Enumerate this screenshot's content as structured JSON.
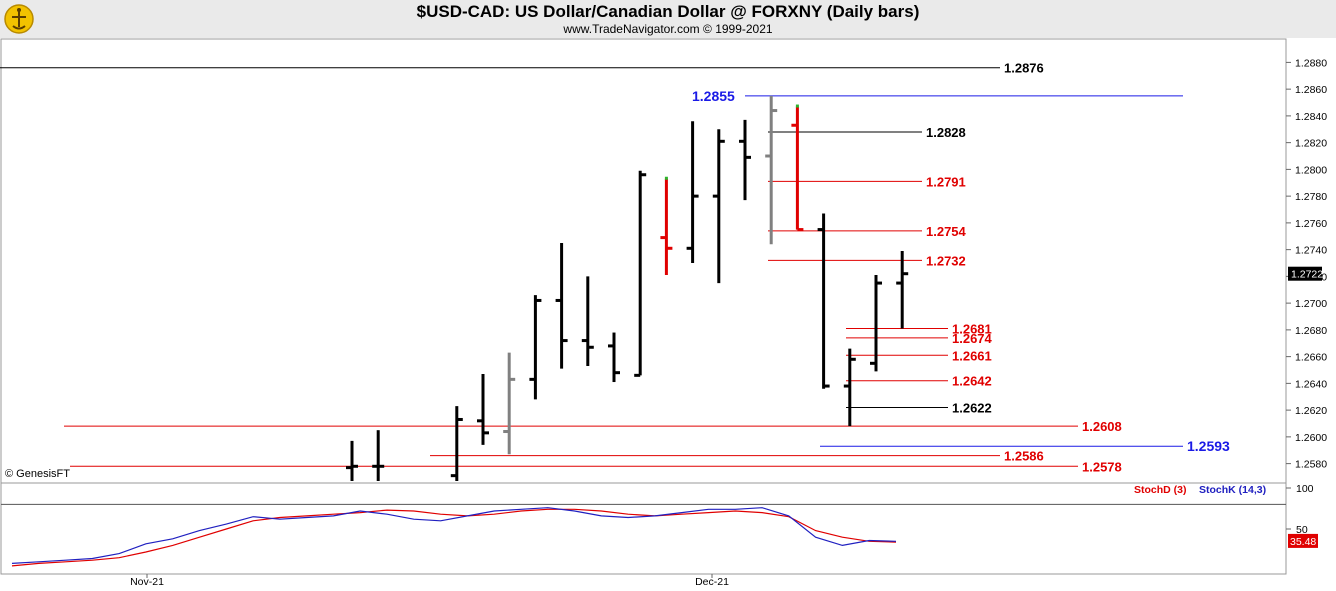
{
  "header": {
    "title": "$USD-CAD:  US Dollar/Canadian Dollar @ FORXNY  (Daily bars)",
    "subtitle": "www.TradeNavigator.com © 1999-2021",
    "watermark": "© GenesisFT"
  },
  "colors": {
    "up_bar": "#000000",
    "inside_bar": "#808080",
    "key_bar": "#e00000",
    "red_level": "#e00000",
    "black_level": "#000000",
    "blue_level": "#1a1ae6",
    "stoch_d": "#e00000",
    "stoch_k": "#2020c0"
  },
  "chart_data": [
    {
      "type": "ohlc",
      "title": "$USD-CAD",
      "yrange": [
        1.2567,
        1.2896
      ],
      "y_ticks": [
        "1.2880",
        "1.2860",
        "1.2840",
        "1.2820",
        "1.2800",
        "1.2780",
        "1.2760",
        "1.2740",
        "1.2720",
        "1.2700",
        "1.2680",
        "1.2660",
        "1.2640",
        "1.2620",
        "1.2600",
        "1.2580"
      ],
      "last_price": "1.2722",
      "x_labels": [
        "Nov-21",
        "Dec-21"
      ],
      "bars": [
        {
          "o": 1.2577,
          "h": 1.2597,
          "l": 1.2567,
          "c": 1.2578,
          "color": "black"
        },
        {
          "o": 1.2578,
          "h": 1.2605,
          "l": 1.2567,
          "c": 1.2578,
          "color": "black"
        },
        {
          "o": 1.2571,
          "h": 1.2623,
          "l": 1.2567,
          "c": 1.2613,
          "color": "black"
        },
        {
          "o": 1.2612,
          "h": 1.2647,
          "l": 1.2594,
          "c": 1.2603,
          "color": "black"
        },
        {
          "o": 1.2604,
          "h": 1.2663,
          "l": 1.2587,
          "c": 1.2643,
          "color": "gray"
        },
        {
          "o": 1.2643,
          "h": 1.2706,
          "l": 1.2628,
          "c": 1.2702,
          "color": "black"
        },
        {
          "o": 1.2702,
          "h": 1.2745,
          "l": 1.2651,
          "c": 1.2672,
          "color": "black"
        },
        {
          "o": 1.2672,
          "h": 1.272,
          "l": 1.2653,
          "c": 1.2667,
          "color": "black"
        },
        {
          "o": 1.2668,
          "h": 1.2678,
          "l": 1.2641,
          "c": 1.2648,
          "color": "black"
        },
        {
          "o": 1.2646,
          "h": 1.2799,
          "l": 1.2646,
          "c": 1.2796,
          "color": "black"
        },
        {
          "o": 1.2749,
          "h": 1.2793,
          "l": 1.2721,
          "c": 1.2741,
          "color": "red"
        },
        {
          "o": 1.2741,
          "h": 1.2836,
          "l": 1.273,
          "c": 1.278,
          "color": "black"
        },
        {
          "o": 1.278,
          "h": 1.283,
          "l": 1.2715,
          "c": 1.2821,
          "color": "black"
        },
        {
          "o": 1.2821,
          "h": 1.2837,
          "l": 1.2777,
          "c": 1.2809,
          "color": "black"
        },
        {
          "o": 1.281,
          "h": 1.2855,
          "l": 1.2744,
          "c": 1.2844,
          "color": "gray"
        },
        {
          "o": 1.2833,
          "h": 1.2847,
          "l": 1.2755,
          "c": 1.2755,
          "color": "red"
        },
        {
          "o": 1.2755,
          "h": 1.2767,
          "l": 1.2636,
          "c": 1.2638,
          "color": "black"
        },
        {
          "o": 1.2638,
          "h": 1.2666,
          "l": 1.2608,
          "c": 1.2658,
          "color": "black"
        },
        {
          "o": 1.2655,
          "h": 1.2721,
          "l": 1.2649,
          "c": 1.2715,
          "color": "black"
        },
        {
          "o": 1.2715,
          "h": 1.2739,
          "l": 1.2681,
          "c": 1.2722,
          "color": "black"
        }
      ],
      "levels": [
        {
          "value": "1.2876",
          "color": "black"
        },
        {
          "value": "1.2855",
          "color": "blue"
        },
        {
          "value": "1.2828",
          "color": "black"
        },
        {
          "value": "1.2791",
          "color": "red"
        },
        {
          "value": "1.2754",
          "color": "red"
        },
        {
          "value": "1.2732",
          "color": "red"
        },
        {
          "value": "1.2681",
          "color": "red"
        },
        {
          "value": "1.2674",
          "color": "red"
        },
        {
          "value": "1.2661",
          "color": "red"
        },
        {
          "value": "1.2642",
          "color": "red"
        },
        {
          "value": "1.2622",
          "color": "black"
        },
        {
          "value": "1.2608",
          "color": "red"
        },
        {
          "value": "1.2593",
          "color": "blue"
        },
        {
          "value": "1.2586",
          "color": "red"
        },
        {
          "value": "1.2578",
          "color": "red"
        }
      ]
    },
    {
      "type": "line",
      "title": "Stochastic",
      "yrange": [
        0,
        100
      ],
      "y_ticks": [
        "100",
        "50"
      ],
      "last_value": "35.48",
      "series": [
        {
          "name": "StochD (3)",
          "color": "red",
          "values": [
            5,
            8,
            10,
            12,
            15,
            22,
            30,
            40,
            50,
            60,
            64,
            66,
            68,
            70,
            73,
            72,
            68,
            66,
            68,
            72,
            74,
            74,
            72,
            68,
            66,
            68,
            70,
            72,
            70,
            65,
            48,
            40,
            35,
            34
          ]
        },
        {
          "name": "StochK (14,3)",
          "color": "blue",
          "values": [
            8,
            10,
            12,
            14,
            20,
            32,
            38,
            48,
            56,
            65,
            62,
            64,
            66,
            72,
            68,
            62,
            60,
            66,
            72,
            74,
            76,
            72,
            66,
            64,
            66,
            70,
            74,
            74,
            76,
            66,
            40,
            30,
            36,
            35
          ]
        }
      ]
    }
  ]
}
